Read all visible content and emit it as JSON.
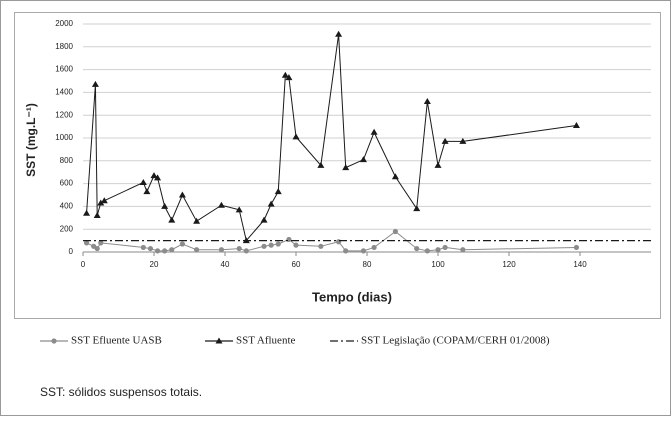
{
  "chart_data": {
    "type": "line",
    "xlabel": "Tempo (dias)",
    "ylabel": "SST (mg.L⁻¹)",
    "xlim": [
      0,
      160
    ],
    "xticks": [
      0,
      20,
      40,
      60,
      80,
      100,
      120,
      140
    ],
    "ylim": [
      0,
      2000
    ],
    "yticks": [
      0,
      200,
      400,
      600,
      800,
      1000,
      1200,
      1400,
      1600,
      1800,
      2000
    ],
    "grid": true,
    "legend": "bottom",
    "series": [
      {
        "name": "SST Efluente UASB",
        "color": "#8c8c8c",
        "marker": "circle",
        "dash": "solid",
        "x": [
          1,
          3,
          4,
          5,
          17,
          19,
          21,
          23,
          25,
          28,
          32,
          39,
          44,
          46,
          51,
          53,
          55,
          58,
          60,
          67,
          72,
          74,
          79,
          82,
          88,
          94,
          97,
          100,
          102,
          107,
          139
        ],
        "values": [
          80,
          50,
          30,
          80,
          40,
          30,
          10,
          10,
          20,
          70,
          20,
          20,
          30,
          10,
          50,
          60,
          70,
          110,
          60,
          50,
          90,
          10,
          10,
          40,
          180,
          30,
          10,
          20,
          40,
          20,
          40
        ]
      },
      {
        "name": "SST Afluente",
        "color": "#1a1a1a",
        "marker": "triangle",
        "dash": "solid",
        "x": [
          1,
          3.5,
          4,
          5,
          6,
          17,
          18,
          20,
          21,
          23,
          25,
          28,
          32,
          39,
          44,
          46,
          51,
          53,
          55,
          57,
          58,
          60,
          67,
          72,
          74,
          79,
          82,
          88,
          94,
          97,
          100,
          102,
          107,
          139
        ],
        "values": [
          340,
          1470,
          320,
          430,
          450,
          610,
          530,
          670,
          650,
          400,
          280,
          500,
          270,
          410,
          370,
          100,
          280,
          420,
          530,
          1550,
          1530,
          1010,
          760,
          1910,
          740,
          810,
          1050,
          660,
          380,
          1320,
          760,
          970,
          970,
          1110
        ]
      },
      {
        "name": "SST Legislação (COPAM/CERH 01/2008)",
        "color": "#1a1a1a",
        "marker": "none",
        "dash": "dashdot",
        "x": [
          0,
          160
        ],
        "values": [
          100,
          100
        ]
      }
    ],
    "note": "SST: sólidos suspensos totais."
  }
}
